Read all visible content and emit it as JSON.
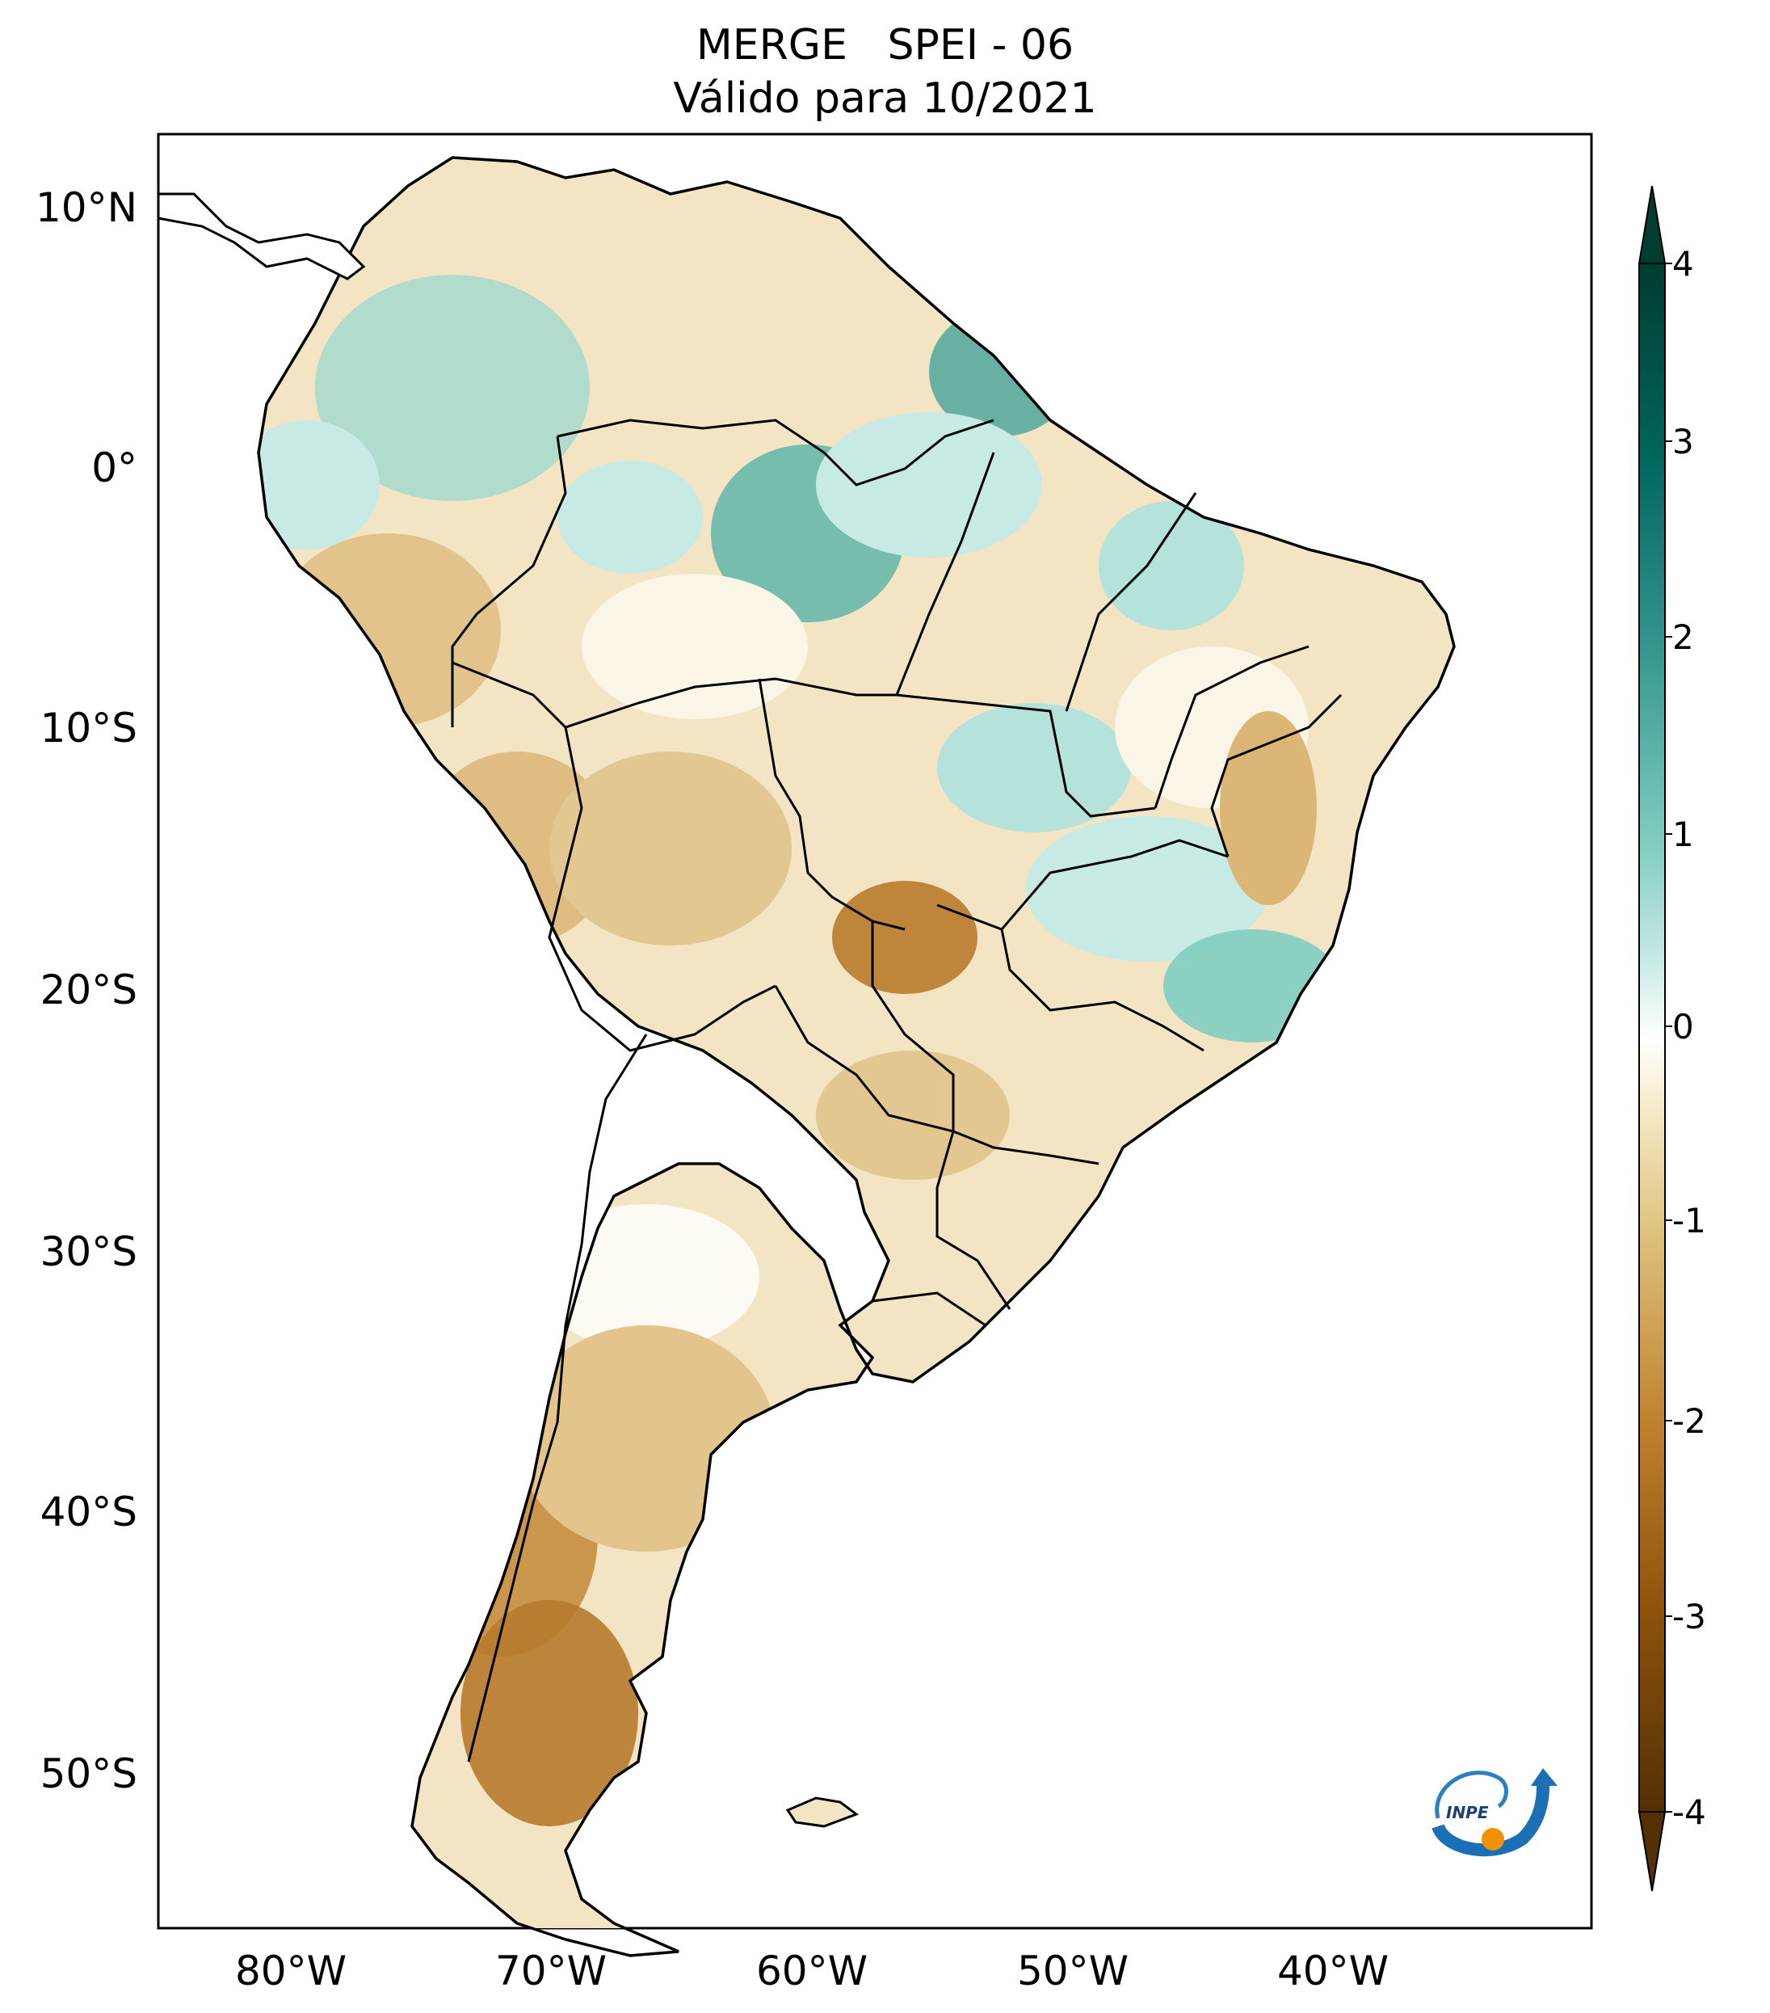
{
  "map": {
    "title_line1": "MERGE   SPEI - 06",
    "title_line2": "Válido para 10/2021",
    "lat_labels": [
      "10°N",
      "0°",
      "10°S",
      "20°S",
      "30°S",
      "40°S",
      "50°S"
    ],
    "lon_labels": [
      "80°W",
      "70°W",
      "60°W",
      "50°W",
      "40°W"
    ],
    "colorbar": {
      "labels": [
        "4",
        "3",
        "2",
        "1",
        "0",
        "-1",
        "-2",
        "-3",
        "-4"
      ],
      "colors": {
        "dry_extreme": "#543005",
        "dry_strong": "#8c510a",
        "dry_moderate": "#bf812d",
        "dry_mild": "#dfc27d",
        "dry_light": "#f6e8c3",
        "neutral": "#ffffff",
        "wet_light": "#c7eae5",
        "wet_mild": "#80cdc1",
        "wet_moderate": "#35978f",
        "wet_strong": "#01665e",
        "wet_extreme": "#003c30"
      }
    },
    "logo_text": "INPE"
  }
}
